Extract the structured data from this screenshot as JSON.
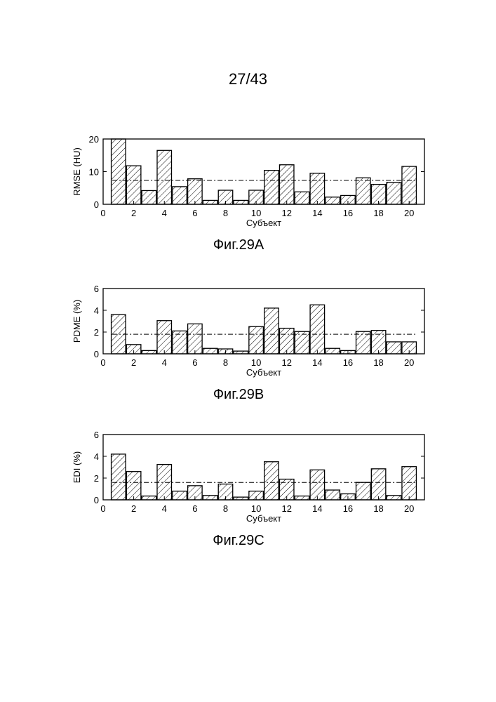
{
  "page": {
    "number": "27/43"
  },
  "chart_data": [
    {
      "type": "bar",
      "caption": "Фиг.29А",
      "xlabel": "Субъект",
      "ylabel": "RMSE (HU)",
      "xlim": [
        0,
        21
      ],
      "ylim": [
        0,
        20
      ],
      "xticks": [
        0,
        2,
        4,
        6,
        8,
        10,
        12,
        14,
        16,
        18,
        20
      ],
      "yticks": [
        0,
        10,
        20
      ],
      "x": [
        1,
        2,
        3,
        4,
        5,
        6,
        7,
        8,
        9,
        10,
        11,
        12,
        13,
        14,
        15,
        16,
        17,
        18,
        19,
        20
      ],
      "values": [
        20,
        11.8,
        4.2,
        16.5,
        5.4,
        7.8,
        1.2,
        4.3,
        1.2,
        4.3,
        10.4,
        12.1,
        3.8,
        9.5,
        2.2,
        2.7,
        8.1,
        6.1,
        6.7,
        11.6
      ],
      "mean": 7.3,
      "bar_fill": "diagonal-hatch"
    },
    {
      "type": "bar",
      "caption": "Фиг.29В",
      "xlabel": "Субъект",
      "ylabel": "PDME (%)",
      "xlim": [
        0,
        21
      ],
      "ylim": [
        0,
        6
      ],
      "xticks": [
        0,
        2,
        4,
        6,
        8,
        10,
        12,
        14,
        16,
        18,
        20
      ],
      "yticks": [
        0,
        2,
        4,
        6
      ],
      "x": [
        1,
        2,
        3,
        4,
        5,
        6,
        7,
        8,
        9,
        10,
        11,
        12,
        13,
        14,
        15,
        16,
        17,
        18,
        19,
        20
      ],
      "values": [
        3.6,
        0.85,
        0.3,
        3.05,
        2.1,
        2.75,
        0.5,
        0.45,
        0.25,
        2.5,
        4.2,
        2.35,
        2.05,
        4.5,
        0.5,
        0.3,
        2.05,
        2.15,
        1.1,
        1.1
      ],
      "mean": 1.8,
      "bar_fill": "diagonal-hatch"
    },
    {
      "type": "bar",
      "caption": "Фиг.29С",
      "xlabel": "Субъект",
      "ylabel": "EDI (%)",
      "xlim": [
        0,
        21
      ],
      "ylim": [
        0,
        6
      ],
      "xticks": [
        0,
        2,
        4,
        6,
        8,
        10,
        12,
        14,
        16,
        18,
        20
      ],
      "yticks": [
        0,
        2,
        4,
        6
      ],
      "x": [
        1,
        2,
        3,
        4,
        5,
        6,
        7,
        8,
        9,
        10,
        11,
        12,
        13,
        14,
        15,
        16,
        17,
        18,
        19,
        20
      ],
      "values": [
        4.2,
        2.6,
        0.35,
        3.25,
        0.8,
        1.3,
        0.4,
        1.45,
        0.25,
        0.8,
        3.5,
        1.9,
        0.35,
        2.75,
        0.9,
        0.55,
        1.6,
        2.85,
        0.4,
        3.05
      ],
      "mean": 1.6,
      "bar_fill": "diagonal-hatch"
    }
  ]
}
